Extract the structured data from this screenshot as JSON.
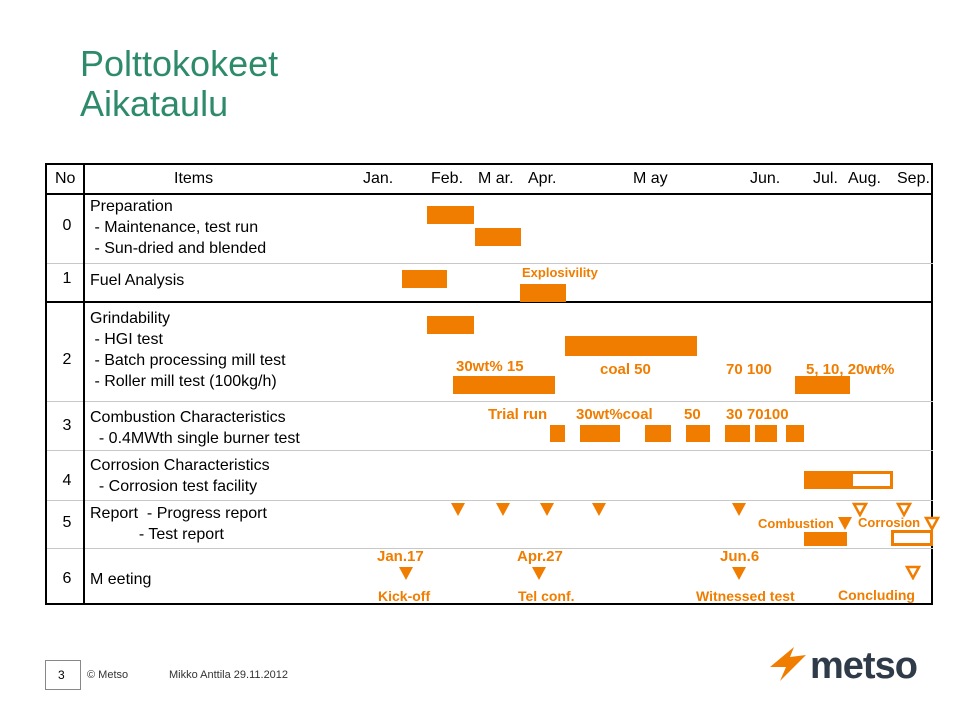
{
  "title": {
    "line1": "Polttokokeet",
    "line2": "Aikataulu"
  },
  "header": {
    "no": "No",
    "items": "Items",
    "months": [
      "Jan.",
      "Feb.",
      "M ar.",
      "Apr.",
      "M ay",
      "Jun.",
      "Jul.",
      "Aug.",
      "Sep."
    ]
  },
  "rows": [
    {
      "no": "0",
      "lines": [
        "Preparation",
        " - Maintenance, test run",
        " - Sun-dried and blended"
      ]
    },
    {
      "no": "1",
      "lines": [
        "Fuel Analysis"
      ]
    },
    {
      "no": "2",
      "lines": [
        "Grindability",
        " - HGI test",
        " - Batch processing mill test",
        " - Roller mill test (100kg/h)"
      ]
    },
    {
      "no": "3",
      "lines": [
        "Combustion Characteristics",
        "  - 0.4MWth single burner test"
      ]
    },
    {
      "no": "4",
      "lines": [
        "Corrosion Characteristics",
        "  - Corrosion test facility"
      ]
    },
    {
      "no": "5",
      "lines": [
        "Report  - Progress report",
        "           - Test report"
      ]
    },
    {
      "no": "6",
      "lines": [
        "M eeting"
      ]
    }
  ],
  "labels": {
    "explosivity": "Explosivility",
    "grind_30wt": "30wt% 15",
    "grind_coal50": "coal  50",
    "grind_70100": "70  100",
    "grind_blend": "5, 10, 20wt%",
    "comb_trial": "Trial run",
    "comb_30wt": "30wt%coal",
    "comb_50": "50",
    "comb_3070100": "30 70100",
    "report_combustion": "Combustion",
    "report_corrosion": "Corrosion",
    "meet_jan17": "Jan.17",
    "meet_apr27": "Apr.27",
    "meet_jun6": "Jun.6",
    "meet_kickoff": "Kick-off",
    "meet_telconf": "Tel conf.",
    "meet_witnessed": "Witnessed test",
    "meet_concluding": "Concluding"
  },
  "footer": {
    "page": "3",
    "copyright": "© Metso",
    "author": "Mikko Anttila 29.11.2012"
  },
  "logo": {
    "text": "metso"
  },
  "colors": {
    "accent": "#f07d00",
    "title": "#2e8b6a",
    "logo": "#2f3b48"
  }
}
